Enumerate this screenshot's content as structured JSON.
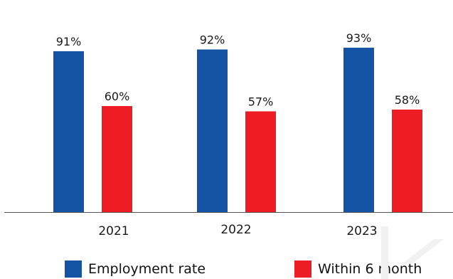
{
  "chart_data": {
    "type": "bar",
    "categories": [
      "2021",
      "2022",
      "2023"
    ],
    "series": [
      {
        "name": "Employment rate",
        "values": [
          91,
          92,
          93
        ],
        "labels": [
          "91%",
          "92%",
          "93%"
        ]
      },
      {
        "name": "Within 6 month",
        "values": [
          60,
          57,
          58
        ],
        "labels": [
          "60%",
          "57%",
          "58%"
        ]
      }
    ],
    "ylim": [
      0,
      100
    ],
    "grid": false,
    "legend_position": "bottom"
  },
  "colors": {
    "series": [
      "#1554a4",
      "#ee1c25"
    ],
    "axis": "#555555"
  }
}
